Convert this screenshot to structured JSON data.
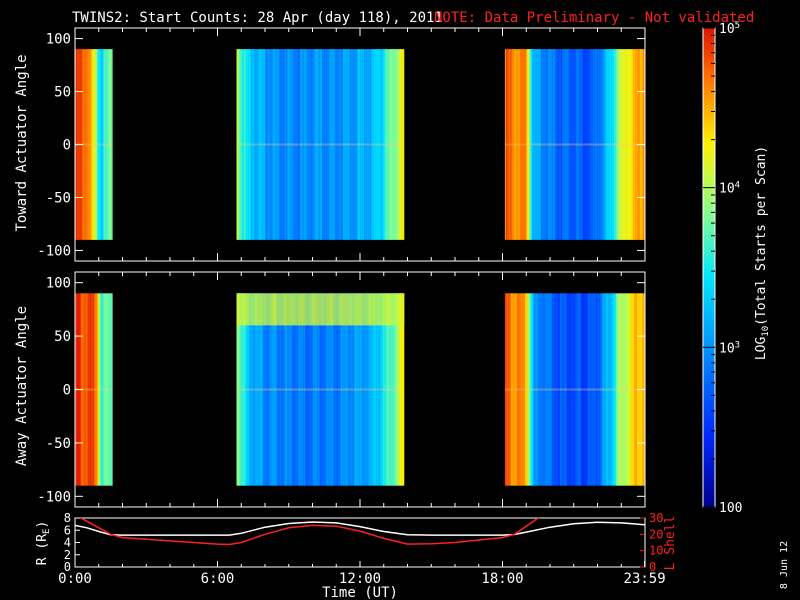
{
  "title": {
    "main": "TWINS2: Start Counts: 28 Apr (day 118), 2011",
    "note": "NOTE: Data Preliminary - Not validated"
  },
  "footer_date": "8 Jun 12",
  "colors": {
    "background": "#000000",
    "foreground": "#ffffff",
    "note": "#ff2020",
    "lshell_line": "#ff2020",
    "r_line": "#ffffff"
  },
  "colorbar": {
    "label": "LOG10(Total Starts per Scan)",
    "label_main": "LOG",
    "label_sub": "10",
    "label_rest": "(Total Starts per Scan)",
    "scale": "log",
    "range": [
      100,
      100000
    ],
    "ticks": [
      {
        "value": 100,
        "text": "100"
      },
      {
        "value": 1000,
        "base": "10",
        "exp": "3"
      },
      {
        "value": 10000,
        "base": "10",
        "exp": "4"
      },
      {
        "value": 100000,
        "base": "10",
        "exp": "5"
      }
    ]
  },
  "chart_data": [
    {
      "type": "heatmap",
      "panel": "toward",
      "ylabel": "Toward Actuator Angle",
      "xlim": [
        0,
        24
      ],
      "ylim": [
        -110,
        110
      ],
      "yticks": [
        100,
        50,
        0,
        -50,
        -100
      ],
      "data_angle_range": [
        -90,
        90
      ],
      "z_units": "Total Starts per Scan (log10 color scale)",
      "segments": [
        {
          "t_start": 0.0,
          "t_end": 1.55,
          "log10_counts_profile": [
            [
              0.0,
              4.8
            ],
            [
              0.5,
              4.75
            ],
            [
              0.9,
              3.8
            ],
            [
              1.1,
              3.4
            ],
            [
              1.3,
              3.6
            ],
            [
              1.55,
              3.8
            ]
          ]
        },
        {
          "t_start": 6.8,
          "t_end": 13.8,
          "log10_counts_profile": [
            [
              6.8,
              4.1
            ],
            [
              7.2,
              3.35
            ],
            [
              8.0,
              3.05
            ],
            [
              9.5,
              2.95
            ],
            [
              11.0,
              3.0
            ],
            [
              12.5,
              3.2
            ],
            [
              13.2,
              3.65
            ],
            [
              13.8,
              4.2
            ]
          ]
        },
        {
          "t_start": 18.1,
          "t_end": 23.95,
          "log10_counts_profile": [
            [
              18.1,
              4.7
            ],
            [
              19.0,
              4.55
            ],
            [
              19.3,
              3.1
            ],
            [
              20.5,
              2.75
            ],
            [
              21.8,
              2.7
            ],
            [
              22.5,
              3.3
            ],
            [
              23.0,
              4.1
            ],
            [
              23.95,
              4.65
            ]
          ]
        }
      ]
    },
    {
      "type": "heatmap",
      "panel": "away",
      "ylabel": "Away Actuator Angle",
      "xlim": [
        0,
        24
      ],
      "ylim": [
        -110,
        110
      ],
      "yticks": [
        100,
        50,
        0,
        -50,
        -100
      ],
      "data_angle_range": [
        -90,
        90
      ],
      "z_units": "Total Starts per Scan (log10 color scale)",
      "segments": [
        {
          "t_start": 0.0,
          "t_end": 1.55,
          "log10_counts_profile": [
            [
              0.0,
              4.85
            ],
            [
              0.9,
              4.8
            ],
            [
              1.1,
              3.5
            ],
            [
              1.3,
              3.7
            ],
            [
              1.55,
              3.9
            ]
          ]
        },
        {
          "t_start": 6.8,
          "t_end": 13.8,
          "log10_counts_profile": [
            [
              6.8,
              4.0
            ],
            [
              7.2,
              3.3
            ],
            [
              8.0,
              2.95
            ],
            [
              9.5,
              2.85
            ],
            [
              11.0,
              2.9
            ],
            [
              12.5,
              3.15
            ],
            [
              13.2,
              3.6
            ],
            [
              13.8,
              4.2
            ]
          ],
          "high_count_band": {
            "angle_range": [
              60,
              90
            ],
            "log10_counts": 4.2
          }
        },
        {
          "t_start": 18.1,
          "t_end": 23.95,
          "log10_counts_profile": [
            [
              18.1,
              4.7
            ],
            [
              19.0,
              4.5
            ],
            [
              19.3,
              3.0
            ],
            [
              20.5,
              2.65
            ],
            [
              21.8,
              2.6
            ],
            [
              22.5,
              3.2
            ],
            [
              23.0,
              4.0
            ],
            [
              23.95,
              4.6
            ]
          ]
        }
      ]
    },
    {
      "type": "line",
      "panel": "orbit",
      "ylabel_left": "R (RE)",
      "ylabel_left_main": "R (R",
      "ylabel_left_sub": "E",
      "ylabel_left_close": ")",
      "ylabel_right": "L Shell",
      "xlabel": "Time (UT)",
      "xlim": [
        0,
        24
      ],
      "ylim_left": [
        0,
        8
      ],
      "ylim_right": [
        0,
        30
      ],
      "yticks_left": [
        0,
        2,
        4,
        6,
        8
      ],
      "yticks_right": [
        0,
        10,
        20,
        30
      ],
      "xticks": [
        {
          "value": 0,
          "label": "0:00"
        },
        {
          "value": 6,
          "label": "6:00"
        },
        {
          "value": 12,
          "label": "12:00"
        },
        {
          "value": 18,
          "label": "18:00"
        },
        {
          "value": 23.983,
          "label": "23:59"
        }
      ],
      "series": [
        {
          "name": "R (RE)",
          "axis": "left",
          "color": "#ffffff",
          "x": [
            0,
            0.5,
            1,
            1.5,
            2,
            3,
            4,
            5,
            6,
            6.5,
            7,
            8,
            9,
            10,
            11,
            12,
            13,
            14,
            15,
            16,
            17,
            18,
            18.5,
            19,
            20,
            21,
            22,
            23,
            23.98
          ],
          "y": [
            6.8,
            6.4,
            5.8,
            5.25,
            5.2,
            5.2,
            5.2,
            5.2,
            5.2,
            5.2,
            5.5,
            6.5,
            7.1,
            7.35,
            7.2,
            6.6,
            5.8,
            5.25,
            5.2,
            5.2,
            5.2,
            5.2,
            5.3,
            5.7,
            6.5,
            7.05,
            7.3,
            7.2,
            6.9
          ]
        },
        {
          "name": "L Shell",
          "axis": "right",
          "color": "#ff2020",
          "x": [
            0,
            0.5,
            1,
            1.5,
            2,
            3,
            4,
            5,
            6,
            6.5,
            7,
            8,
            9,
            10,
            11,
            12,
            13,
            14,
            15,
            16,
            17,
            18,
            18.5,
            19,
            19.5,
            20
          ],
          "y": [
            32,
            28,
            24,
            20,
            18,
            17,
            16,
            15,
            14,
            13.8,
            15,
            20,
            24,
            25.5,
            25,
            22,
            17.5,
            14,
            14.2,
            15,
            16.5,
            18,
            20,
            25,
            30,
            35
          ]
        }
      ]
    }
  ]
}
